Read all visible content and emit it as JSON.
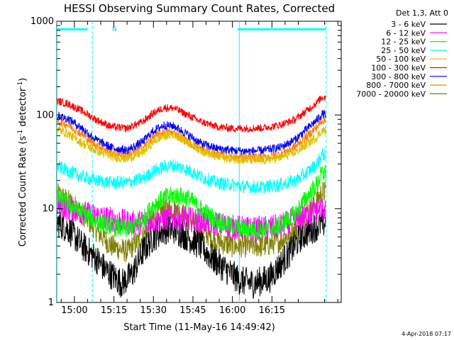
{
  "chart_data": {
    "type": "line",
    "title": "HESSI Observing Summary Count Rates, Corrected",
    "xlabel": "Start Time (11-May-16 14:49:42)",
    "ylabel": "Corrected Count Rate (s",
    "ylabel_sup1": "-1",
    "ylabel_mid": " detector",
    "ylabel_sup2": "-1",
    "ylabel_end": ")",
    "yscale": "log",
    "ylim": [
      1,
      1000
    ],
    "xlim_minutes": [
      -6.7,
      101.3
    ],
    "x_tick_labels": [
      "15:00",
      "15:15",
      "15:30",
      "15:45",
      "16:00",
      "16:15"
    ],
    "y_tick_labels": [
      "1",
      "10",
      "100",
      "1000"
    ],
    "legend_header": "Det 1,3, Att 0",
    "legend_position": "right, outside plot",
    "timestamp": "4-Apr-2018 07:17",
    "annotation_label": "N",
    "x_units": "minutes after 15:00",
    "series": [
      {
        "name": "3 - 6 keV",
        "color": "#000000",
        "x": [
          -6,
          -2,
          3,
          8,
          12,
          18,
          22,
          26,
          30,
          34,
          38,
          43,
          48,
          52,
          58,
          63,
          68,
          74,
          78,
          82,
          86,
          90,
          94
        ],
        "y": [
          7,
          6,
          4,
          3,
          2.2,
          1.6,
          2,
          3.5,
          5,
          6,
          6,
          5,
          4,
          3,
          2.2,
          1.7,
          1.6,
          1.8,
          2.5,
          3.5,
          5,
          6,
          7
        ]
      },
      {
        "name": "6 - 12 keV",
        "color": "#ff00ff",
        "x": [
          -6,
          3,
          12,
          22,
          30,
          38,
          48,
          58,
          68,
          78,
          88,
          94
        ],
        "y": [
          11,
          9,
          8,
          7,
          7.5,
          8,
          7.5,
          6.5,
          6,
          6.5,
          8.5,
          10
        ]
      },
      {
        "name": "12 - 25 keV",
        "color": "#00ff00",
        "x": [
          -6,
          -2,
          3,
          8,
          14,
          20,
          26,
          30,
          34,
          38,
          43,
          48,
          54,
          60,
          66,
          72,
          78,
          84,
          88,
          92,
          94
        ],
        "y": [
          13,
          11,
          9,
          7.5,
          6.5,
          6,
          7.5,
          11,
          13,
          14,
          13,
          10,
          7.5,
          6.5,
          6,
          6,
          6.5,
          9,
          13,
          18,
          24
        ]
      },
      {
        "name": "25 - 50 keV",
        "color": "#00ffff",
        "x": [
          -6,
          -2,
          3,
          8,
          14,
          20,
          26,
          30,
          34,
          38,
          43,
          48,
          54,
          60,
          66,
          72,
          78,
          84,
          88,
          92,
          94
        ],
        "y": [
          28,
          25,
          22,
          20,
          19,
          19,
          21,
          25,
          28,
          29,
          26,
          22,
          19,
          18,
          17,
          17,
          18,
          20,
          24,
          30,
          38
        ]
      },
      {
        "name": "50 - 100 keV",
        "color": "#e0c000",
        "x": [
          -6,
          -2,
          3,
          8,
          14,
          20,
          26,
          30,
          34,
          38,
          43,
          48,
          54,
          60,
          66,
          72,
          78,
          84,
          88,
          92,
          94
        ],
        "y": [
          70,
          62,
          50,
          42,
          36,
          34,
          40,
          52,
          60,
          62,
          52,
          42,
          36,
          34,
          33,
          33,
          35,
          40,
          48,
          58,
          68
        ]
      },
      {
        "name": "100 - 300 keV",
        "color": "#ff0000",
        "x": [
          -6,
          -2,
          3,
          8,
          14,
          20,
          26,
          30,
          34,
          38,
          43,
          48,
          54,
          60,
          66,
          72,
          78,
          84,
          88,
          92,
          94
        ],
        "y": [
          140,
          130,
          110,
          90,
          75,
          72,
          85,
          105,
          120,
          118,
          100,
          85,
          75,
          72,
          72,
          73,
          78,
          90,
          110,
          135,
          155
        ]
      },
      {
        "name": "300 - 800 keV",
        "color": "#0000ff",
        "x": [
          -6,
          -2,
          3,
          8,
          14,
          20,
          26,
          30,
          34,
          38,
          43,
          48,
          54,
          60,
          66,
          72,
          78,
          84,
          88,
          92,
          94
        ],
        "y": [
          98,
          90,
          72,
          55,
          45,
          42,
          52,
          68,
          78,
          76,
          62,
          50,
          44,
          42,
          41,
          42,
          45,
          55,
          70,
          88,
          102
        ]
      },
      {
        "name": "800 - 7000 keV",
        "color": "#ff8000",
        "x": [
          -6,
          -2,
          3,
          8,
          14,
          20,
          26,
          30,
          34,
          38,
          43,
          48,
          54,
          60,
          66,
          72,
          78,
          84,
          88,
          92,
          94
        ],
        "y": [
          85,
          78,
          62,
          48,
          40,
          37,
          45,
          58,
          66,
          64,
          52,
          43,
          38,
          36,
          35,
          35,
          38,
          46,
          58,
          74,
          88
        ]
      },
      {
        "name": "7000 - 20000 keV",
        "color": "#808000",
        "x": [
          -6,
          -2,
          3,
          8,
          14,
          20,
          26,
          30,
          34,
          38,
          43,
          48,
          54,
          60,
          66,
          72,
          78,
          84,
          88,
          92,
          94
        ],
        "y": [
          14,
          12,
          9,
          6,
          4,
          3.5,
          5,
          8,
          10,
          10,
          8,
          6,
          4.5,
          4,
          4,
          4,
          4.5,
          6,
          9,
          12,
          15
        ]
      }
    ],
    "markers": [
      {
        "type": "bar",
        "x": [
          -6.7,
          5
        ],
        "y": 820,
        "color": "#00ffff"
      },
      {
        "type": "bar",
        "x": [
          62,
          95.5
        ],
        "y": 820,
        "color": "#00ffff"
      },
      {
        "type": "solid_vline",
        "x": -6.6,
        "color": "#00ffff"
      },
      {
        "type": "dashed_vline",
        "x": 6.8,
        "color": "#00ffff"
      },
      {
        "type": "solid_vline",
        "x": 62.6,
        "color": "#00ffff"
      },
      {
        "type": "dashed_vline",
        "x": 95.6,
        "color": "#00ffff"
      }
    ]
  }
}
